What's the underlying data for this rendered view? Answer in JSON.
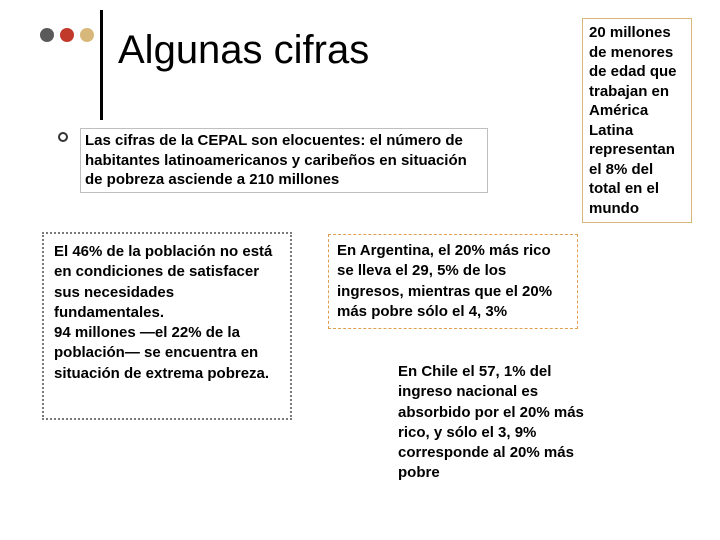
{
  "title": "Algunas cifras",
  "dots": {
    "colors": [
      "#5a5a5a",
      "#c0392b",
      "#d7b87a"
    ]
  },
  "bullet": "Las cifras de la CEPAL son elocuentes: el número de habitantes latinoamericanos y caribeños en situación de pobreza asciende a 210 millones",
  "box_right": "20 millones de menores de edad que trabajan en América Latina representan el 8% del total en el mundo",
  "box_bl": " El 46% de la población no está en condiciones de satisfacer sus necesidades fundamentales.\n 94 millones —el 22% de la población— se encuentra en situación de extrema pobreza.",
  "box_mid": "En Argentina, el 20% más rico se lleva el 29, 5% de los ingresos, mientras que el 20% más pobre sólo el 4, 3%",
  "box_br": "En Chile el 57, 1% del ingreso nacional es absorbido por el 20% más rico, y sólo el 3, 9% corresponde al 20% más pobre",
  "styles": {
    "background": "#ffffff",
    "title_fontsize": 40,
    "body_fontsize": 15,
    "body_fontweight": "bold",
    "vline_color": "#000000",
    "box_right_border": "#d7b87a",
    "box_bl_border": "#7a7a7a",
    "box_mid_border": "#e0a050",
    "bullet_border": "#bfbfbf"
  }
}
